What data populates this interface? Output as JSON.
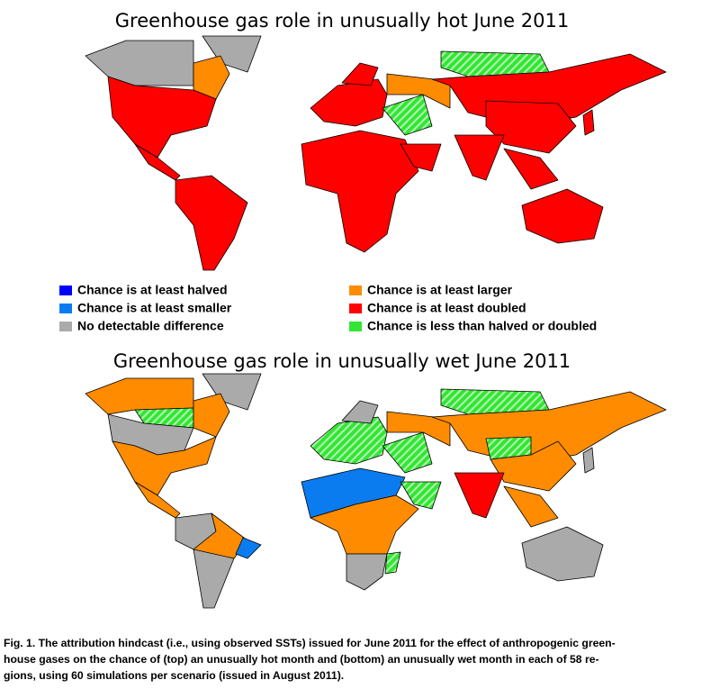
{
  "top_map": {
    "title": "Greenhouse gas role in unusually hot June 2011"
  },
  "legend": {
    "items": [
      "Chance is at least halved",
      "Chance is at least larger",
      "Chance is at least smaller",
      "Chance is at least doubled",
      "No detectable difference",
      "Chance is less than halved or doubled"
    ]
  },
  "bottom_map": {
    "title": "Greenhouse gas role in unusually wet June 2011"
  },
  "caption": {
    "lines": [
      "Fig. 1. The attribution hindcast (i.e., using observed SSTs) issued for June 2011 for the effect of anthropogenic green-",
      "house gases on the chance of (top) an unusually hot month and (bottom) an unusually wet month in each of 58 re-",
      "gions, using 60 simulations per scenario (issued in August 2011)."
    ]
  }
}
